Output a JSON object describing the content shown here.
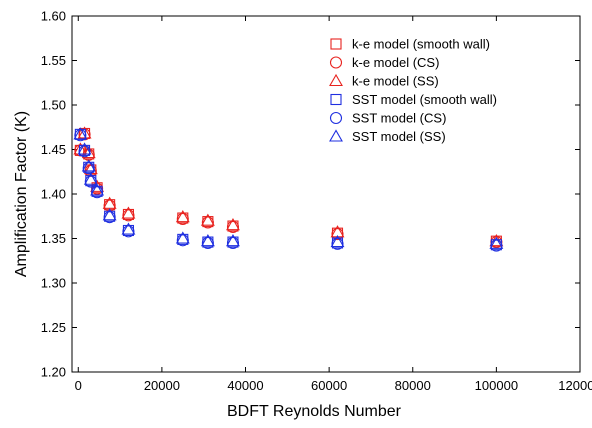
{
  "chart_data": {
    "type": "scatter",
    "title": "",
    "xlabel": "BDFT Reynolds Number",
    "ylabel": "Amplification Factor (K)",
    "xlim": [
      -1500,
      120000
    ],
    "ylim": [
      1.2,
      1.6
    ],
    "xticks": [
      0,
      20000,
      40000,
      60000,
      80000,
      100000,
      120000
    ],
    "xtick_labels": [
      "0",
      "20000",
      "40000",
      "60000",
      "80000",
      "100000",
      "120000"
    ],
    "yticks": [
      1.2,
      1.25,
      1.3,
      1.35,
      1.4,
      1.45,
      1.5,
      1.55,
      1.6
    ],
    "ytick_labels": [
      "1.20",
      "1.25",
      "1.30",
      "1.35",
      "1.40",
      "1.45",
      "1.50",
      "1.55",
      "1.60"
    ],
    "grid": false,
    "legend_position": "top-right",
    "x": [
      500,
      1500,
      2500,
      3000,
      4500,
      7500,
      12000,
      25000,
      31000,
      37000,
      62000,
      100000
    ],
    "series": [
      {
        "name": "k-e model (smooth wall)",
        "marker": "square",
        "color": "#e8231f",
        "values": [
          1.449,
          1.468,
          1.445,
          1.427,
          1.407,
          1.388,
          1.377,
          1.373,
          1.369,
          1.364,
          1.356,
          1.347
        ]
      },
      {
        "name": "k-e model (CS)",
        "marker": "circle",
        "color": "#e8231f",
        "values": [
          1.449,
          1.467,
          1.444,
          1.426,
          1.406,
          1.387,
          1.376,
          1.372,
          1.368,
          1.363,
          1.355,
          1.346
        ]
      },
      {
        "name": "k-e model (SS)",
        "marker": "triangle",
        "color": "#e8231f",
        "values": [
          1.45,
          1.468,
          1.446,
          1.428,
          1.408,
          1.389,
          1.378,
          1.374,
          1.37,
          1.365,
          1.357,
          1.347
        ]
      },
      {
        "name": "SST model (smooth wall)",
        "marker": "square",
        "color": "#1f2fe0",
        "values": [
          1.467,
          1.449,
          1.43,
          1.415,
          1.403,
          1.375,
          1.359,
          1.349,
          1.346,
          1.346,
          1.345,
          1.343
        ]
      },
      {
        "name": "SST model (CS)",
        "marker": "circle",
        "color": "#1f2fe0",
        "values": [
          1.466,
          1.448,
          1.429,
          1.414,
          1.402,
          1.374,
          1.358,
          1.348,
          1.345,
          1.345,
          1.344,
          1.342
        ]
      },
      {
        "name": "SST model (SS)",
        "marker": "triangle",
        "color": "#1f2fe0",
        "values": [
          1.467,
          1.45,
          1.431,
          1.416,
          1.404,
          1.376,
          1.36,
          1.35,
          1.347,
          1.347,
          1.346,
          1.344
        ]
      }
    ]
  }
}
